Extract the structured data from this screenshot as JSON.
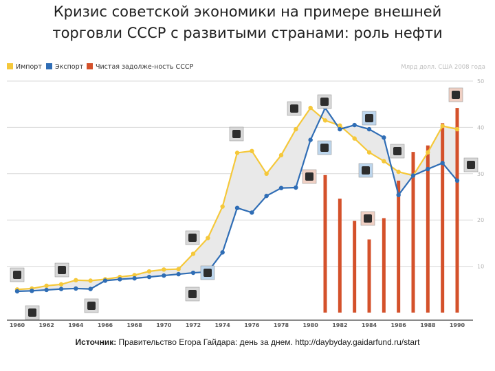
{
  "title_lines": [
    "Кризис советской экономики на примере внешней",
    "торговли СССР с развитыми странами: роль нефти"
  ],
  "units_label": "Млрд долл. США 2008 года",
  "source_label": "Источник:",
  "source_text": "Правительство Егора Гайдара: день за днем. http://daybyday.gaidarfund.ru/start",
  "colors": {
    "import": "#f5c83a",
    "export": "#2f6db5",
    "debt": "#d4512b",
    "fill": "#e9e9e9",
    "grid": "#d8d8d8"
  },
  "chart_data": {
    "type": "line",
    "x": [
      1960,
      1961,
      1962,
      1963,
      1964,
      1965,
      1966,
      1967,
      1968,
      1969,
      1970,
      1971,
      1972,
      1973,
      1974,
      1975,
      1976,
      1977,
      1978,
      1979,
      1980,
      1981,
      1982,
      1983,
      1984,
      1985,
      1986,
      1987,
      1988,
      1989,
      1990
    ],
    "ylim": [
      0,
      50
    ],
    "yticks": [
      10,
      20,
      30,
      40,
      50
    ],
    "xticks": [
      1960,
      1962,
      1964,
      1966,
      1968,
      1970,
      1972,
      1974,
      1976,
      1978,
      1980,
      1982,
      1984,
      1986,
      1988,
      1990
    ],
    "series": [
      {
        "name": "Импорт",
        "values": [
          5.0,
          5.2,
          5.8,
          6.1,
          7.0,
          6.9,
          7.2,
          7.7,
          8.1,
          8.9,
          9.3,
          9.4,
          12.7,
          16.1,
          22.9,
          34.5,
          34.9,
          30.0,
          34.0,
          39.6,
          44.2,
          41.5,
          40.4,
          37.6,
          34.6,
          32.7,
          30.4,
          29.6,
          34.6,
          40.3,
          39.6
        ]
      },
      {
        "name": "Экспорт",
        "values": [
          4.6,
          4.7,
          4.9,
          5.1,
          5.2,
          5.1,
          6.9,
          7.2,
          7.4,
          7.7,
          8.0,
          8.3,
          8.6,
          8.8,
          13.0,
          22.6,
          21.6,
          25.2,
          26.9,
          27.0,
          37.3,
          44.2,
          39.6,
          40.5,
          39.6,
          37.8,
          25.4,
          29.6,
          31.0,
          32.3,
          28.5
        ]
      },
      {
        "name": "Чистая задолже-ность СССР",
        "x": [
          1981,
          1982,
          1983,
          1984,
          1985,
          1986,
          1987,
          1988,
          1989,
          1990
        ],
        "values": [
          29.7,
          24.6,
          19.8,
          15.8,
          20.4,
          28.5,
          34.7,
          36.1,
          40.9,
          44.2
        ]
      }
    ],
    "xlabel": "",
    "ylabel": ""
  }
}
